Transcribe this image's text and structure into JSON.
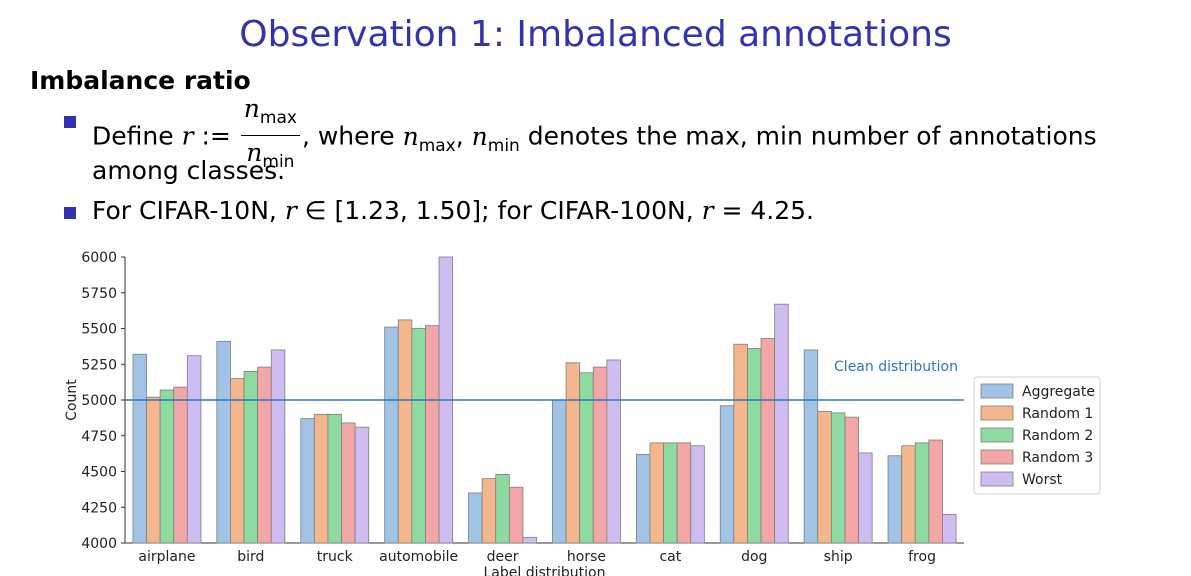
{
  "slide": {
    "title": "Observation 1: Imbalanced annotations",
    "heading": "Imbalance ratio",
    "bullet1": {
      "define": "Define",
      "r": "r",
      "assign": ":=",
      "num": "n",
      "num_sub": "max",
      "den": "n",
      "den_sub": "min",
      "where": ", where",
      "n1": "n",
      "n1_sub": "max",
      "comma": ",",
      "n2": "n",
      "n2_sub": "min",
      "rest": "denotes the max, min number of annotations",
      "line2": "among classes."
    },
    "bullet2": {
      "text1": "For CIFAR-10N,",
      "r1": "r",
      "elem": "∈ [1.23, 1.50]; for CIFAR-100N,",
      "r2": "r",
      "eq": "= 4.25."
    }
  },
  "chart_data": {
    "type": "bar",
    "xlabel": "Label distribution",
    "ylabel": "Count",
    "ylim": [
      4000,
      6000
    ],
    "yticks": [
      4000,
      4250,
      4500,
      4750,
      5000,
      5250,
      5500,
      5750,
      6000
    ],
    "categories": [
      "airplane",
      "bird",
      "truck",
      "automobile",
      "deer",
      "horse",
      "cat",
      "dog",
      "ship",
      "frog"
    ],
    "series": [
      {
        "name": "Aggregate",
        "color": "#a1c4e6",
        "values": [
          5320,
          5410,
          4870,
          5510,
          4350,
          5000,
          4620,
          4960,
          5350,
          4610
        ]
      },
      {
        "name": "Random 1",
        "color": "#f4b68c",
        "values": [
          5020,
          5150,
          4900,
          5560,
          4450,
          5260,
          4700,
          5390,
          4920,
          4680
        ]
      },
      {
        "name": "Random 2",
        "color": "#8ddba0",
        "values": [
          5070,
          5200,
          4900,
          5500,
          4480,
          5190,
          4700,
          5360,
          4910,
          4700
        ]
      },
      {
        "name": "Random 3",
        "color": "#f3a6a6",
        "values": [
          5090,
          5230,
          4840,
          5520,
          4390,
          5230,
          4700,
          5430,
          4880,
          4720
        ]
      },
      {
        "name": "Worst",
        "color": "#cfbdf2",
        "values": [
          5310,
          5350,
          4810,
          6000,
          4040,
          5280,
          4680,
          5670,
          4630,
          4200
        ]
      }
    ],
    "reference_line": {
      "value": 5000,
      "label": "Clean distribution",
      "color": "#2f78b5"
    },
    "legend_position": "right",
    "grid": false
  }
}
